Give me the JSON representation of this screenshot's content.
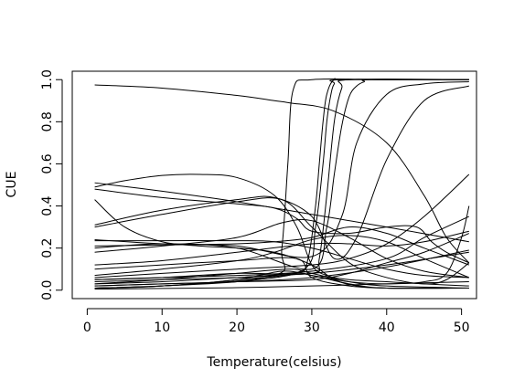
{
  "chart_data": {
    "type": "line",
    "title": "",
    "xlabel": "Temperature(celsius)",
    "ylabel": "CUE",
    "xlim": [
      -2,
      52
    ],
    "ylim": [
      -0.04,
      1.04
    ],
    "x_ticks": [
      0,
      10,
      20,
      30,
      40,
      50
    ],
    "y_ticks": [
      0.0,
      0.2,
      0.4,
      0.6,
      0.8,
      1.0
    ],
    "y_tick_labels": [
      "0.0",
      "0.2",
      "0.4",
      "0.6",
      "0.8",
      "1.0"
    ],
    "grid": false,
    "legend": "none",
    "line_color": "#000000",
    "series": [
      {
        "x": [
          1,
          10,
          20,
          25,
          27,
          33,
          40,
          45,
          48,
          51
        ],
        "values": [
          0.975,
          0.96,
          0.925,
          0.9,
          0.89,
          0.85,
          0.7,
          0.45,
          0.25,
          0.13
        ]
      },
      {
        "x": [
          1,
          10,
          25,
          26,
          26.8,
          27.5,
          30,
          40,
          51
        ],
        "values": [
          0.01,
          0.02,
          0.07,
          0.2,
          0.6,
          0.95,
          1.0,
          1.0,
          1.0
        ]
      },
      {
        "x": [
          1,
          10,
          20,
          28,
          29.5,
          30.5,
          31,
          31.5,
          32,
          33,
          35,
          51
        ],
        "values": [
          0.01,
          0.02,
          0.04,
          0.08,
          0.15,
          0.4,
          0.6,
          0.8,
          0.93,
          1.0,
          1.0,
          1.0
        ]
      },
      {
        "x": [
          1,
          10,
          20,
          29,
          30.5,
          31.5,
          32,
          32.5,
          33,
          34,
          51
        ],
        "values": [
          0.01,
          0.02,
          0.05,
          0.1,
          0.3,
          0.6,
          0.8,
          0.92,
          0.98,
          1.0,
          1.0
        ]
      },
      {
        "x": [
          1,
          10,
          20,
          30,
          32,
          33,
          34,
          35,
          36,
          37,
          38,
          51
        ],
        "values": [
          0.2,
          0.22,
          0.2,
          0.1,
          0.3,
          0.55,
          0.78,
          0.92,
          0.97,
          0.99,
          1.0,
          1.0
        ]
      },
      {
        "x": [
          1,
          10,
          20,
          30,
          31,
          32,
          33,
          34,
          35,
          51
        ],
        "values": [
          0.05,
          0.06,
          0.08,
          0.08,
          0.15,
          0.45,
          0.8,
          0.96,
          1.0,
          1.0
        ]
      },
      {
        "x": [
          1,
          10,
          20,
          25,
          30,
          33,
          36,
          40,
          45,
          51
        ],
        "values": [
          0.31,
          0.38,
          0.43,
          0.44,
          0.35,
          0.15,
          0.25,
          0.62,
          0.9,
          0.97
        ]
      },
      {
        "x": [
          1,
          10,
          20,
          30,
          34,
          36,
          40,
          45,
          51
        ],
        "values": [
          0.24,
          0.22,
          0.21,
          0.16,
          0.35,
          0.7,
          0.93,
          0.98,
          0.99
        ]
      },
      {
        "x": [
          1,
          5,
          10,
          15,
          20,
          25,
          28,
          30,
          32,
          35,
          40,
          45,
          51
        ],
        "values": [
          0.49,
          0.52,
          0.545,
          0.55,
          0.535,
          0.45,
          0.3,
          0.12,
          0.07,
          0.05,
          0.04,
          0.03,
          0.02
        ]
      },
      {
        "x": [
          1,
          10,
          20,
          30,
          40,
          51
        ],
        "values": [
          0.51,
          0.47,
          0.42,
          0.36,
          0.3,
          0.23
        ]
      },
      {
        "x": [
          1,
          10,
          20,
          25,
          28,
          30,
          35,
          40,
          44,
          46,
          48,
          51
        ],
        "values": [
          0.48,
          0.44,
          0.41,
          0.39,
          0.34,
          0.28,
          0.27,
          0.3,
          0.3,
          0.23,
          0.18,
          0.13
        ]
      },
      {
        "x": [
          1,
          5,
          10,
          15,
          20,
          25,
          30,
          33,
          36,
          40,
          51
        ],
        "values": [
          0.43,
          0.3,
          0.23,
          0.21,
          0.2,
          0.18,
          0.12,
          0.05,
          0.02,
          0.01,
          0.01
        ]
      },
      {
        "x": [
          1,
          10,
          20,
          26,
          30,
          35,
          40,
          45,
          48,
          51
        ],
        "values": [
          0.3,
          0.36,
          0.42,
          0.43,
          0.3,
          0.13,
          0.06,
          0.03,
          0.05,
          0.13
        ]
      },
      {
        "x": [
          1,
          10,
          20,
          26,
          30,
          35,
          40,
          45,
          51
        ],
        "values": [
          0.18,
          0.21,
          0.25,
          0.32,
          0.33,
          0.25,
          0.15,
          0.09,
          0.06
        ]
      },
      {
        "x": [
          1,
          10,
          20,
          25,
          30,
          35,
          40,
          45,
          51
        ],
        "values": [
          0.21,
          0.215,
          0.22,
          0.23,
          0.25,
          0.3,
          0.27,
          0.2,
          0.12
        ]
      },
      {
        "x": [
          1,
          10,
          20,
          25,
          30,
          35,
          40,
          45,
          51
        ],
        "values": [
          0.235,
          0.235,
          0.235,
          0.23,
          0.2,
          0.15,
          0.1,
          0.07,
          0.06
        ]
      },
      {
        "x": [
          1,
          10,
          20,
          30,
          35,
          40,
          45,
          51
        ],
        "values": [
          0.12,
          0.14,
          0.18,
          0.22,
          0.22,
          0.21,
          0.23,
          0.28
        ]
      },
      {
        "x": [
          1,
          10,
          20,
          28,
          30,
          35,
          40,
          45,
          51
        ],
        "values": [
          0.1,
          0.12,
          0.14,
          0.15,
          0.06,
          0.02,
          0.01,
          0.01,
          0.01
        ]
      },
      {
        "x": [
          1,
          10,
          20,
          25,
          30,
          35,
          40,
          45,
          51
        ],
        "values": [
          0.07,
          0.1,
          0.14,
          0.18,
          0.24,
          0.26,
          0.23,
          0.15,
          0.06
        ]
      },
      {
        "x": [
          1,
          10,
          20,
          30,
          40,
          45,
          51
        ],
        "values": [
          0.05,
          0.06,
          0.07,
          0.09,
          0.15,
          0.25,
          0.35
        ]
      },
      {
        "x": [
          1,
          10,
          20,
          28,
          30,
          35,
          40,
          45,
          48,
          50,
          51
        ],
        "values": [
          0.04,
          0.05,
          0.06,
          0.08,
          0.07,
          0.04,
          0.03,
          0.04,
          0.08,
          0.25,
          0.4
        ]
      },
      {
        "x": [
          1,
          10,
          20,
          30,
          40,
          51
        ],
        "values": [
          0.02,
          0.03,
          0.04,
          0.06,
          0.11,
          0.19
        ]
      },
      {
        "x": [
          1,
          10,
          20,
          30,
          40,
          51
        ],
        "values": [
          0.03,
          0.04,
          0.06,
          0.08,
          0.12,
          0.18
        ]
      },
      {
        "x": [
          1,
          10,
          20,
          27,
          30,
          35,
          40,
          51
        ],
        "values": [
          0.03,
          0.05,
          0.08,
          0.1,
          0.08,
          0.04,
          0.02,
          0.01
        ]
      },
      {
        "x": [
          1,
          10,
          20,
          30,
          35,
          40,
          45,
          51
        ],
        "values": [
          0.06,
          0.08,
          0.1,
          0.12,
          0.15,
          0.22,
          0.35,
          0.55
        ]
      },
      {
        "x": [
          1,
          10,
          20,
          30,
          35,
          40,
          45,
          51
        ],
        "values": [
          0.02,
          0.03,
          0.04,
          0.05,
          0.08,
          0.13,
          0.18,
          0.27
        ]
      },
      {
        "x": [
          1,
          10,
          20,
          26,
          30,
          35,
          40,
          51
        ],
        "values": [
          0.01,
          0.02,
          0.05,
          0.09,
          0.07,
          0.03,
          0.01,
          0.01
        ]
      },
      {
        "x": [
          1,
          10,
          20,
          30,
          40,
          51
        ],
        "values": [
          0.005,
          0.008,
          0.012,
          0.02,
          0.03,
          0.04
        ]
      }
    ]
  }
}
